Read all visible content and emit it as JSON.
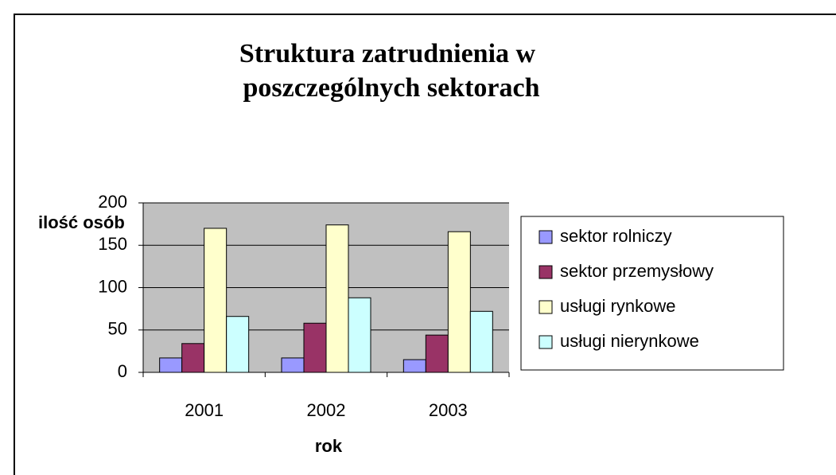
{
  "chart_data": {
    "type": "bar",
    "title": [
      "Struktura zatrudnienia w",
      "poszczególnych sektorach"
    ],
    "x_label": "rok",
    "y_label": "ilość osób",
    "categories": [
      "2001",
      "2002",
      "2003"
    ],
    "series": [
      {
        "name": "sektor rolniczy",
        "color": "#9999ff",
        "values": [
          17,
          17,
          15
        ]
      },
      {
        "name": "sektor przemysłowy",
        "color": "#993366",
        "values": [
          34,
          58,
          44
        ]
      },
      {
        "name": "usługi rynkowe",
        "color": "#ffffcc",
        "values": [
          170,
          174,
          166
        ]
      },
      {
        "name": "usługi nierynkowe",
        "color": "#ccffff",
        "values": [
          66,
          88,
          72
        ]
      }
    ],
    "ylim": [
      0,
      200
    ],
    "yticks": [
      0,
      50,
      100,
      150,
      200
    ],
    "grid": true,
    "legend": "right"
  }
}
